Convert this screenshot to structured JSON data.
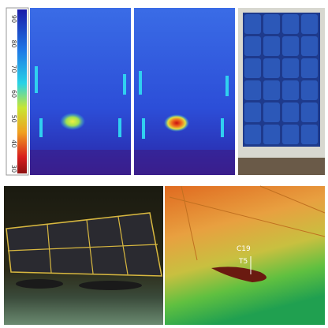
{
  "colorbar": {
    "labels": [
      "90",
      "80",
      "70",
      "60",
      "50",
      "40",
      "30"
    ]
  },
  "annotations": {
    "point_a": "C19",
    "point_b": "T5"
  }
}
